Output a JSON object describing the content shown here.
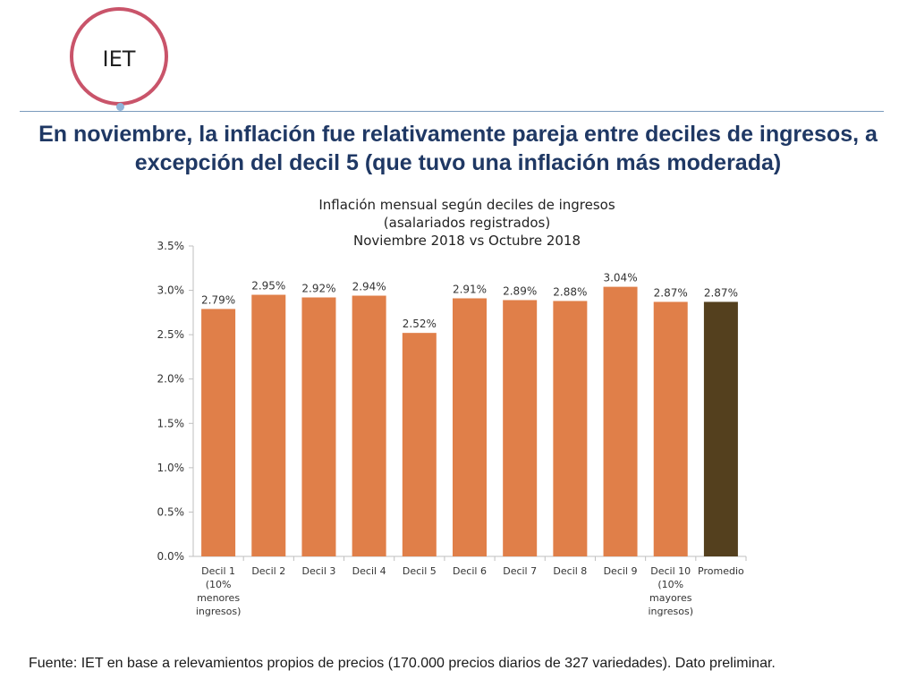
{
  "logo": {
    "text": "IET"
  },
  "headline": "En noviembre, la inflación fue relativamente pareja entre deciles de ingresos, a excepción del decil 5 (que tuvo una inflación más moderada)",
  "source": {
    "label": "Fuente:",
    "text": " IET en base a relevamientos propios de precios (170.000 precios diarios de 327 variedades). Dato preliminar."
  },
  "colors": {
    "bar": "#e07f49",
    "bar_highlight": "#54401e",
    "headline": "#1f3864",
    "logo_ring": "#c9546a"
  },
  "chart_data": {
    "type": "bar",
    "title": [
      "Inflación mensual según deciles de ingresos",
      "(asalariados registrados)",
      "Noviembre 2018 vs Octubre 2018"
    ],
    "categories": [
      [
        "Decil 1",
        "(10%",
        "menores",
        "ingresos)"
      ],
      [
        "Decil 2"
      ],
      [
        "Decil 3"
      ],
      [
        "Decil 4"
      ],
      [
        "Decil 5"
      ],
      [
        "Decil 6"
      ],
      [
        "Decil 7"
      ],
      [
        "Decil 8"
      ],
      [
        "Decil 9"
      ],
      [
        "Decil 10",
        "(10%",
        "mayores",
        "ingresos)"
      ],
      [
        "Promedio"
      ]
    ],
    "values": [
      2.79,
      2.95,
      2.92,
      2.94,
      2.52,
      2.91,
      2.89,
      2.88,
      3.04,
      2.87,
      2.87
    ],
    "data_labels": [
      "2.79%",
      "2.95%",
      "2.92%",
      "2.94%",
      "2.52%",
      "2.91%",
      "2.89%",
      "2.88%",
      "3.04%",
      "2.87%",
      "2.87%"
    ],
    "highlight_index": 10,
    "ylim": [
      0,
      3.5
    ],
    "yticks": [
      0,
      0.5,
      1.0,
      1.5,
      2.0,
      2.5,
      3.0,
      3.5
    ],
    "ytick_labels": [
      "0.0%",
      "0.5%",
      "1.0%",
      "1.5%",
      "2.0%",
      "2.5%",
      "3.0%",
      "3.5%"
    ],
    "grid": false,
    "xlabel": "",
    "ylabel": ""
  }
}
